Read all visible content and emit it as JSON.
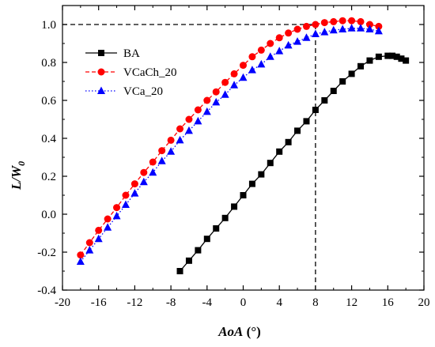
{
  "chart_data": {
    "type": "line",
    "title": "",
    "xlabel": {
      "italic": "AoA",
      "unit": " (°)"
    },
    "ylabel": {
      "main": "L/W",
      "sub": "0"
    },
    "xlim": [
      -20,
      20
    ],
    "ylim": [
      -0.4,
      1.1
    ],
    "xticks": [
      -20,
      -16,
      -12,
      -8,
      -4,
      0,
      4,
      8,
      12,
      16,
      20
    ],
    "xtick_labels": [
      "-20",
      "-16",
      "-12",
      "-8",
      "-4",
      "0",
      "4",
      "8",
      "12",
      "16",
      "20"
    ],
    "yticks": [
      -0.4,
      -0.2,
      0.0,
      0.2,
      0.4,
      0.6,
      0.8,
      1.0
    ],
    "ytick_labels": [
      "-0.4",
      "-0.2",
      "0.0",
      "0.2",
      "0.4",
      "0.6",
      "0.8",
      "1.0"
    ],
    "grid": false,
    "legend_position": "top-left",
    "reference_lines": {
      "x": 8,
      "y": 1.0
    },
    "series": [
      {
        "name": "BA",
        "marker": "square",
        "line_style": "solid",
        "color": "#000000",
        "x": [
          -7,
          -6,
          -5,
          -4,
          -3,
          -2,
          -1,
          0,
          1,
          2,
          3,
          4,
          5,
          6,
          7,
          8,
          9,
          10,
          11,
          12,
          13,
          14,
          15,
          16,
          16.5,
          17,
          17.5,
          18
        ],
        "y": [
          -0.3,
          -0.245,
          -0.19,
          -0.13,
          -0.075,
          -0.02,
          0.04,
          0.1,
          0.16,
          0.21,
          0.27,
          0.33,
          0.38,
          0.44,
          0.49,
          0.55,
          0.6,
          0.65,
          0.7,
          0.74,
          0.78,
          0.81,
          0.83,
          0.835,
          0.835,
          0.83,
          0.82,
          0.81
        ]
      },
      {
        "name": "VCaCh_20",
        "marker": "circle",
        "line_style": "dashed",
        "color": "#ff0000",
        "x": [
          -18,
          -17,
          -16,
          -15,
          -14,
          -13,
          -12,
          -11,
          -10,
          -9,
          -8,
          -7,
          -6,
          -5,
          -4,
          -3,
          -2,
          -1,
          0,
          1,
          2,
          3,
          4,
          5,
          6,
          7,
          8,
          9,
          10,
          11,
          12,
          13,
          14,
          15
        ],
        "y": [
          -0.215,
          -0.15,
          -0.085,
          -0.025,
          0.035,
          0.1,
          0.16,
          0.22,
          0.275,
          0.335,
          0.39,
          0.45,
          0.5,
          0.55,
          0.6,
          0.645,
          0.695,
          0.74,
          0.785,
          0.83,
          0.865,
          0.9,
          0.93,
          0.955,
          0.975,
          0.99,
          1.0,
          1.01,
          1.015,
          1.02,
          1.02,
          1.015,
          1.0,
          0.99
        ]
      },
      {
        "name": "VCa_20",
        "marker": "triangle",
        "line_style": "dotted",
        "color": "#0000ff",
        "x": [
          -18,
          -17,
          -16,
          -15,
          -14,
          -13,
          -12,
          -11,
          -10,
          -9,
          -8,
          -7,
          -6,
          -5,
          -4,
          -3,
          -2,
          -1,
          0,
          1,
          2,
          3,
          4,
          5,
          6,
          7,
          8,
          9,
          10,
          11,
          12,
          13,
          14,
          15
        ],
        "y": [
          -0.25,
          -0.19,
          -0.13,
          -0.07,
          -0.01,
          0.05,
          0.11,
          0.17,
          0.22,
          0.28,
          0.33,
          0.39,
          0.44,
          0.49,
          0.54,
          0.59,
          0.63,
          0.68,
          0.72,
          0.76,
          0.79,
          0.83,
          0.86,
          0.89,
          0.91,
          0.93,
          0.95,
          0.96,
          0.97,
          0.975,
          0.98,
          0.98,
          0.975,
          0.965
        ]
      }
    ]
  }
}
